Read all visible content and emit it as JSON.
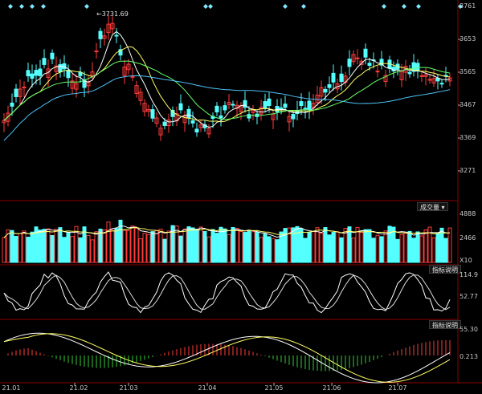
{
  "price_panel": {
    "y_labels": [
      "3761",
      "3653",
      "3565",
      "3467",
      "3369",
      "3271"
    ],
    "high_marker": "3731.69"
  },
  "volume_panel": {
    "button_label": "成交量",
    "y_labels": [
      "4888",
      "2466",
      "X10"
    ]
  },
  "osc1_panel": {
    "button_label": "指标说明",
    "y_labels": [
      "114.9",
      "52.77"
    ]
  },
  "osc2_panel": {
    "button_label": "指标说明",
    "y_labels": [
      "55.30",
      "0.213"
    ]
  },
  "x_labels": [
    "21.01",
    "21.02",
    "21.03",
    "21.04",
    "21.05",
    "21.06",
    "21.07"
  ],
  "colors": {
    "up": "#ff3b3b",
    "down": "#54ffff",
    "ma_white": "#ffffff",
    "ma_yellow": "#ffff66",
    "ma_green": "#66ff66",
    "ma_cyan": "#4fc3f7",
    "grid": "#8b0000"
  }
}
